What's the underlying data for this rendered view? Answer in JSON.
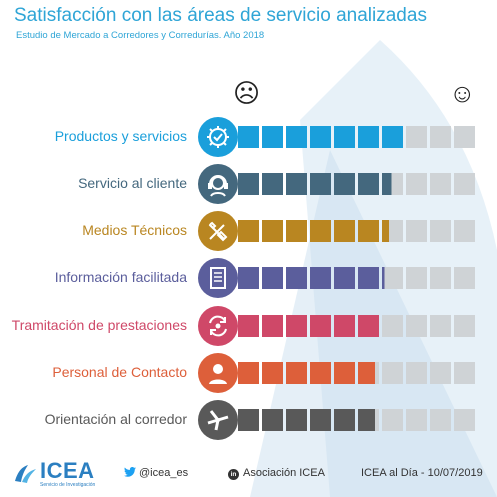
{
  "header": {
    "title": "Satisfacción con las áreas de servicio analizadas",
    "subtitle": "Estudio de Mercado a Corredores y Corredurías. Año 2018"
  },
  "scale": {
    "low_icon": "sad-face-icon",
    "high_icon": "smiley-face-icon",
    "segments": 10
  },
  "chart_data": {
    "type": "bar",
    "categories": [
      "Productos y servicios",
      "Servicio al cliente",
      "Medios Técnicos",
      "Información facilitada",
      "Tramitación de prestaciones",
      "Personal de Contacto",
      "Orientación al corredor"
    ],
    "values": [
      6.9,
      6.4,
      6.3,
      6.1,
      6.0,
      5.7,
      5.7
    ],
    "ylim": [
      0,
      10
    ],
    "series_colors": [
      "#1a9fdb",
      "#44687e",
      "#b98621",
      "#5b5e9c",
      "#cf4868",
      "#dd5f3a",
      "#595959"
    ],
    "faded_colors": [
      "#54b7e4",
      "#8fa0ab",
      "#d6ac55",
      "#9a9cc6",
      "#dc8ea0",
      "#e9967a",
      "#8f8f8f"
    ],
    "icons": [
      "gear-check-icon",
      "headset-agent-icon",
      "tools-icon",
      "document-list-icon",
      "process-arrows-icon",
      "contact-person-icon",
      "windmill-icon"
    ]
  },
  "footer": {
    "logo": "ICEA",
    "logo_tagline": "Servicio de Investigación",
    "twitter": "@icea_es",
    "linkedin": "Asociación ICEA",
    "date": "ICEA al Día - 10/07/2019"
  }
}
